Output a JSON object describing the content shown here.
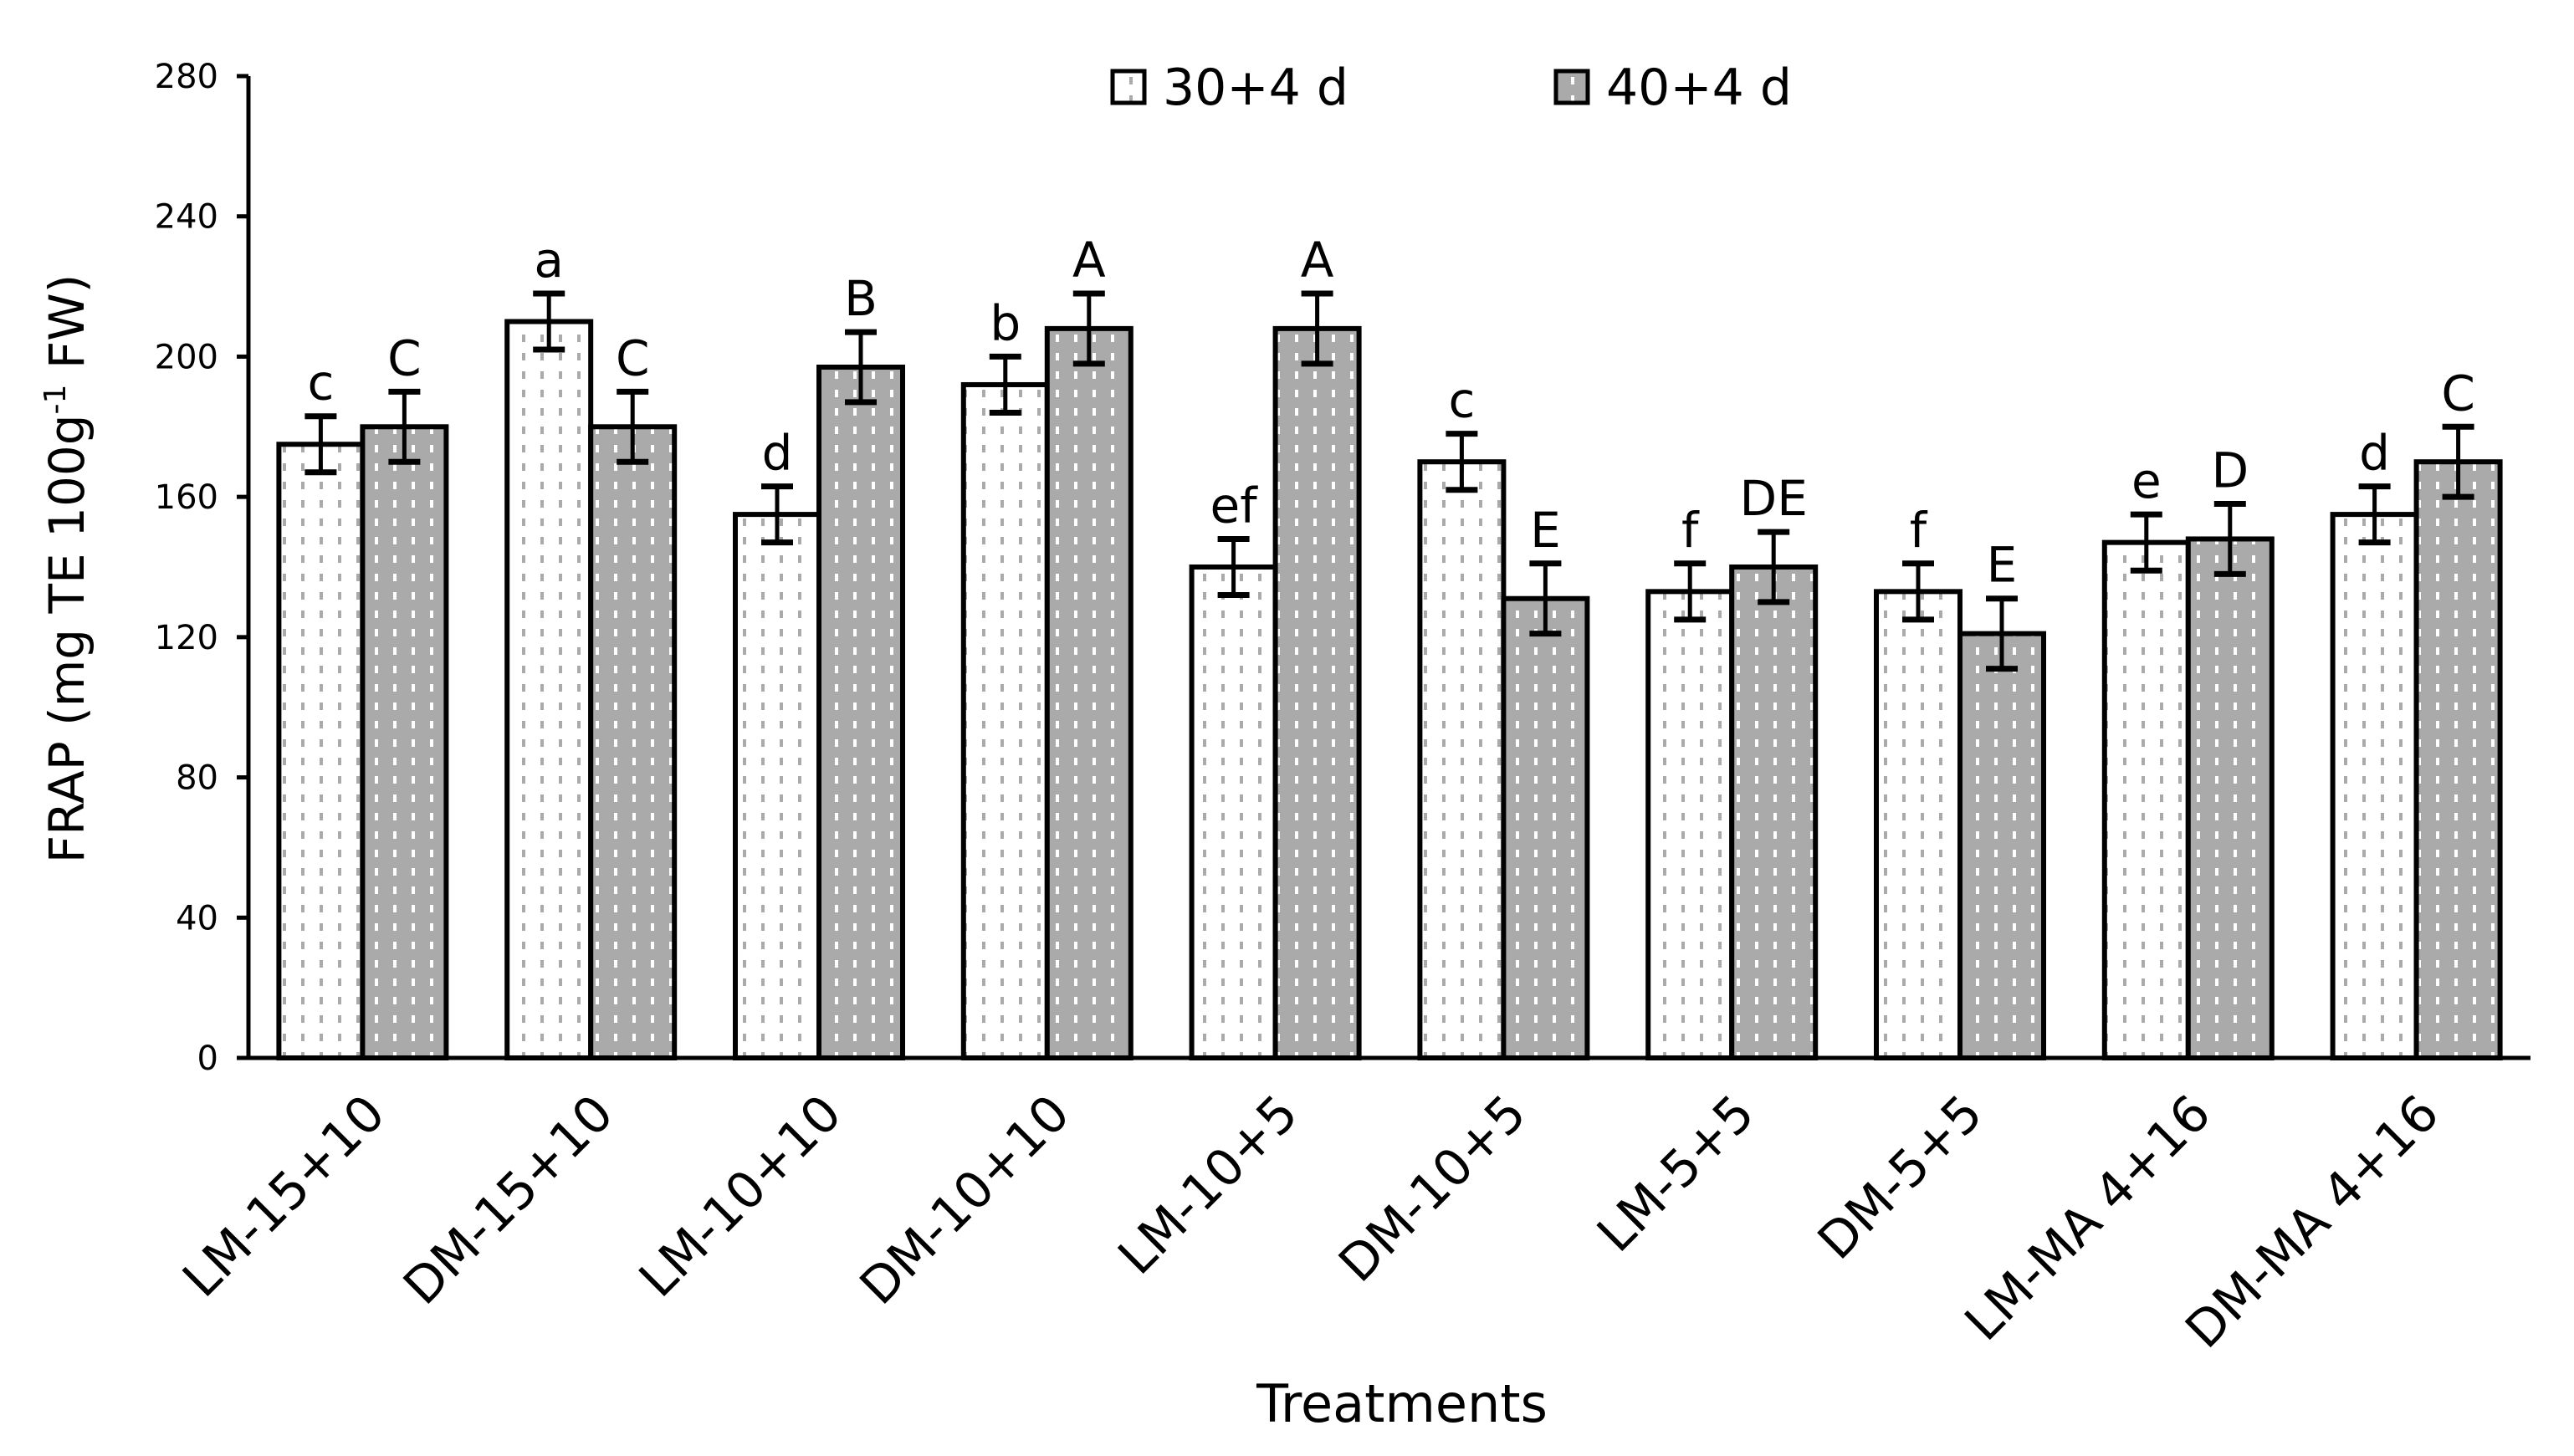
{
  "chart_data": {
    "type": "bar",
    "title": "",
    "xlabel": "Treatments",
    "ylabel": "FRAP (mg TE 100g",
    "ylabel_sup": "-1",
    "ylabel_tail": " FW)",
    "ylim": [
      0,
      280
    ],
    "yticks": [
      0,
      40,
      80,
      120,
      160,
      200,
      240,
      280
    ],
    "grid": false,
    "legend_position": "top",
    "categories": [
      "LM-15+10",
      "DM-15+10",
      "LM-10+10",
      "DM-10+10",
      "LM-10+5",
      "DM-10+5",
      "LM-5+5",
      "DM-5+5",
      "LM-MA 4+16",
      "DM-MA 4+16"
    ],
    "series": [
      {
        "name": "30+4 d",
        "color": "#ffffff",
        "dot_color": "#aaaaaa",
        "values": [
          175,
          210,
          155,
          192,
          140,
          170,
          133,
          133,
          147,
          155
        ],
        "errors": [
          8,
          8,
          8,
          8,
          8,
          8,
          8,
          8,
          8,
          8
        ],
        "letters": [
          "c",
          "a",
          "d",
          "b",
          "ef",
          "c",
          "f",
          "f",
          "e",
          "d"
        ]
      },
      {
        "name": "40+4 d",
        "color": "#aaaaaa",
        "dot_color": "#ffffff",
        "values": [
          180,
          180,
          197,
          208,
          208,
          131,
          140,
          121,
          148,
          170
        ],
        "errors": [
          10,
          10,
          10,
          10,
          10,
          10,
          10,
          10,
          10,
          10
        ],
        "letters": [
          "C",
          "C",
          "B",
          "A",
          "A",
          "E",
          "DE",
          "E",
          "D",
          "C"
        ]
      }
    ]
  }
}
